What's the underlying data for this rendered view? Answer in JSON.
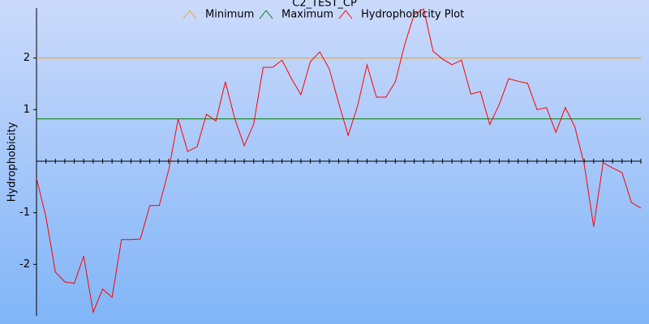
{
  "chart_data": {
    "type": "line",
    "title": "C2_TEST_CP",
    "y_label": "Hydrophobicity",
    "ylim": [
      -3,
      3
    ],
    "yticks": [
      -2,
      -1,
      1,
      2
    ],
    "xlim": [
      1,
      65
    ],
    "x": [
      1,
      2,
      3,
      4,
      5,
      6,
      7,
      8,
      9,
      10,
      11,
      12,
      13,
      14,
      15,
      16,
      17,
      18,
      19,
      20,
      21,
      22,
      23,
      24,
      25,
      26,
      27,
      28,
      29,
      30,
      31,
      32,
      33,
      34,
      35,
      36,
      37,
      38,
      39,
      40,
      41,
      42,
      43,
      44,
      45,
      46,
      47,
      48,
      49,
      50,
      51,
      52,
      53,
      54,
      55,
      56,
      57,
      58,
      59,
      60,
      61,
      62,
      63,
      64,
      65
    ],
    "series": [
      {
        "name": "Minimum",
        "color": "#f0a020",
        "x": [
          1,
          65
        ],
        "values": [
          2,
          2
        ]
      },
      {
        "name": "Maximum",
        "color": "#008000",
        "x": [
          1,
          65
        ],
        "values": [
          0.82,
          0.82
        ]
      },
      {
        "name": "Hydrophobicity Plot",
        "color": "#ff0000",
        "values": [
          -0.33,
          -1.08,
          -2.15,
          -2.34,
          -2.37,
          -1.84,
          -2.93,
          -2.48,
          -2.64,
          -1.52,
          -1.52,
          -1.51,
          -0.86,
          -0.86,
          -0.17,
          0.82,
          0.19,
          0.28,
          0.91,
          0.78,
          1.54,
          0.82,
          0.3,
          0.72,
          1.82,
          1.82,
          1.96,
          1.6,
          1.29,
          1.93,
          2.12,
          1.79,
          1.13,
          0.5,
          1.07,
          1.87,
          1.24,
          1.24,
          1.54,
          2.27,
          2.85,
          2.95,
          2.13,
          1.98,
          1.87,
          1.96,
          1.3,
          1.35,
          0.71,
          1.1,
          1.6,
          1.55,
          1.51,
          1.0,
          1.04,
          0.56,
          1.04,
          0.67,
          -0.06,
          -1.27,
          -0.03,
          -0.13,
          -0.22,
          -0.8,
          -0.91
        ]
      }
    ]
  }
}
